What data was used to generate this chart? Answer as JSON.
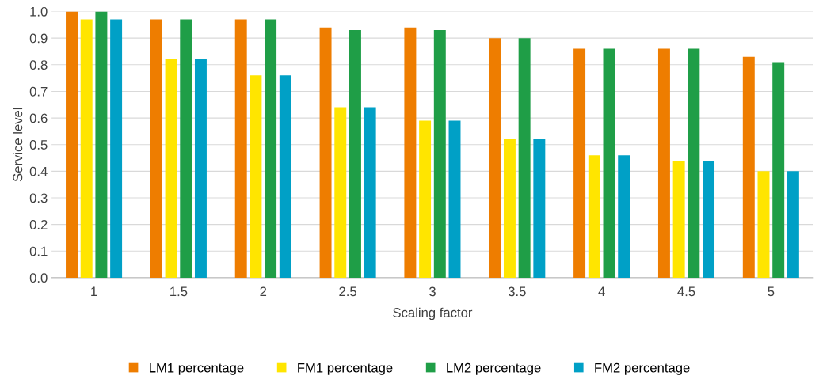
{
  "chart_data": {
    "type": "bar",
    "xlabel": "Scaling factor",
    "ylabel": "Service level",
    "categories": [
      "1",
      "1.5",
      "2",
      "2.5",
      "3",
      "3.5",
      "4",
      "4.5",
      "5"
    ],
    "series": [
      {
        "name": "LM1 percentage",
        "color": "#ee7d00",
        "values": [
          1.0,
          0.97,
          0.97,
          0.94,
          0.94,
          0.9,
          0.86,
          0.86,
          0.83
        ]
      },
      {
        "name": "FM1 percentage",
        "color": "#ffe500",
        "values": [
          0.97,
          0.82,
          0.76,
          0.64,
          0.59,
          0.52,
          0.46,
          0.44,
          0.4
        ]
      },
      {
        "name": "LM2 percentage",
        "color": "#1f9e47",
        "values": [
          1.0,
          0.97,
          0.97,
          0.93,
          0.93,
          0.9,
          0.86,
          0.86,
          0.81
        ]
      },
      {
        "name": "FM2 percentage",
        "color": "#00a0c6",
        "values": [
          0.97,
          0.82,
          0.76,
          0.64,
          0.59,
          0.52,
          0.46,
          0.44,
          0.4
        ]
      }
    ],
    "ylim": [
      0,
      1.0
    ],
    "yticks": [
      {
        "value": 0,
        "label": "0.0"
      },
      0.1,
      0.2,
      0.3,
      0.4,
      0.5,
      0.6,
      0.7,
      0.8,
      0.9,
      {
        "value": 1.0,
        "label": "1.0"
      }
    ],
    "grid": "y",
    "legend": "bottom"
  }
}
